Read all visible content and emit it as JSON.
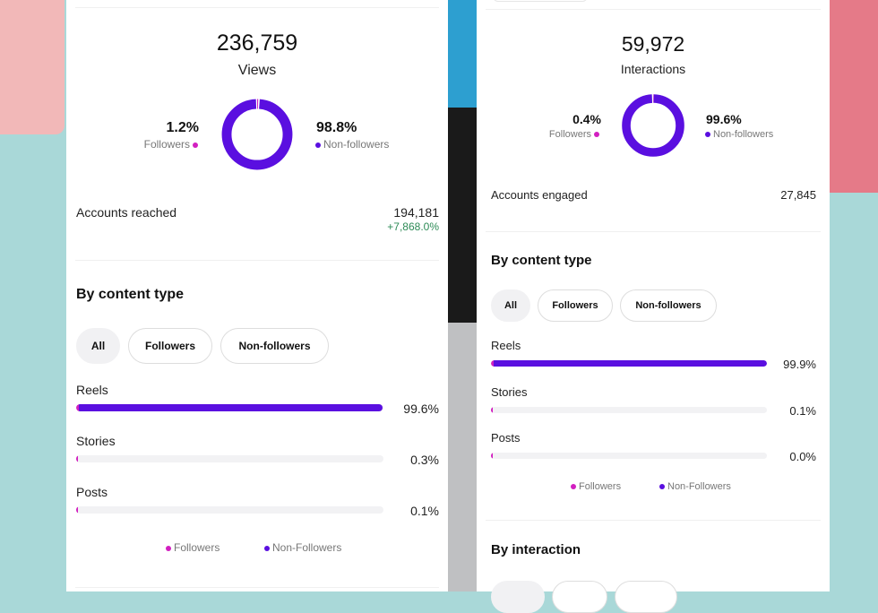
{
  "colors": {
    "followers": "#d21fc0",
    "non_followers": "#5a0fe0",
    "positive": "#2e8b57"
  },
  "left_panel": {
    "total": "236,759",
    "total_label": "Views",
    "followers_pct": "1.2%",
    "followers_label": "Followers",
    "followers_value": 1.2,
    "non_followers_pct": "98.8%",
    "non_followers_label": "Non-followers",
    "metric_label": "Accounts reached",
    "metric_value": "194,181",
    "metric_change": "+7,868.0%",
    "section_title": "By content type",
    "filters": [
      {
        "label": "All",
        "active": true
      },
      {
        "label": "Followers",
        "active": false
      },
      {
        "label": "Non-followers",
        "active": false
      }
    ],
    "content_types": [
      {
        "label": "Reels",
        "pct": "99.6%",
        "value": 99.6
      },
      {
        "label": "Stories",
        "pct": "0.3%",
        "value": 0.3
      },
      {
        "label": "Posts",
        "pct": "0.1%",
        "value": 0.1
      }
    ],
    "legend": [
      "Followers",
      "Non-Followers"
    ]
  },
  "right_panel": {
    "total": "59,972",
    "total_label": "Interactions",
    "followers_pct": "0.4%",
    "followers_label": "Followers",
    "followers_value": 0.4,
    "non_followers_pct": "99.6%",
    "non_followers_label": "Non-followers",
    "metric_label": "Accounts engaged",
    "metric_value": "27,845",
    "section_title": "By content type",
    "filters": [
      {
        "label": "All",
        "active": true
      },
      {
        "label": "Followers",
        "active": false
      },
      {
        "label": "Non-followers",
        "active": false
      }
    ],
    "content_types": [
      {
        "label": "Reels",
        "pct": "99.9%",
        "value": 99.9
      },
      {
        "label": "Stories",
        "pct": "0.1%",
        "value": 0.1
      },
      {
        "label": "Posts",
        "pct": "0.0%",
        "value": 0.0
      }
    ],
    "legend": [
      "Followers",
      "Non-Followers"
    ],
    "next_section_title": "By interaction"
  }
}
